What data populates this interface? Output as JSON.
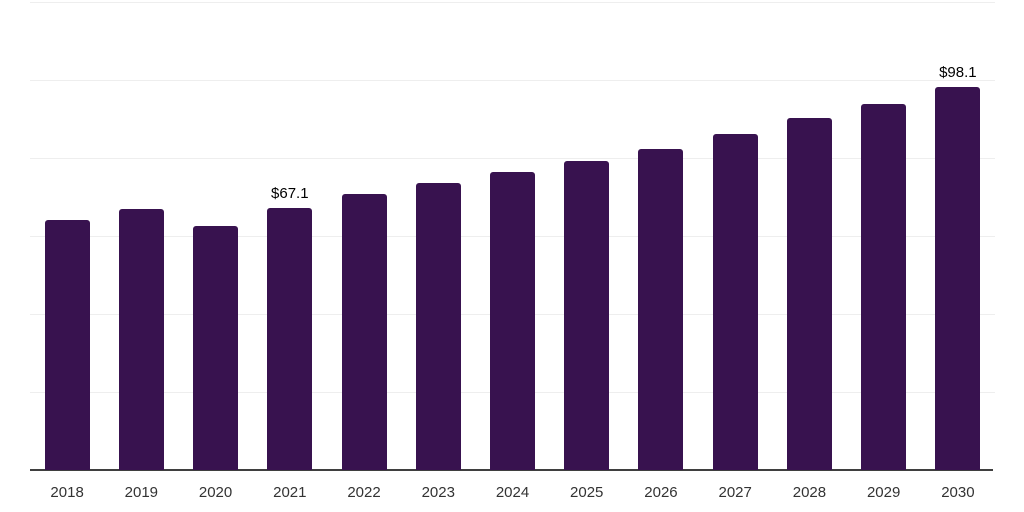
{
  "chart_data": {
    "type": "bar",
    "title": "",
    "xlabel": "",
    "ylabel": "",
    "categories": [
      "2018",
      "2019",
      "2020",
      "2021",
      "2022",
      "2023",
      "2024",
      "2025",
      "2026",
      "2027",
      "2028",
      "2029",
      "2030"
    ],
    "values": [
      64.1,
      66.8,
      62.6,
      67.1,
      70.8,
      73.5,
      76.3,
      79.3,
      82.3,
      86.2,
      90.2,
      93.8,
      98.1
    ],
    "point_labels": [
      "",
      "",
      "",
      "$67.1",
      "",
      "",
      "",
      "",
      "",
      "",
      "",
      "",
      "$98.1"
    ],
    "ylim": [
      0,
      120
    ],
    "grid_step": 20,
    "grid": "horizontal",
    "legend_position": "none",
    "y_axis_labels_visible": false,
    "colors": {
      "bar": "#38124F",
      "axis_line": "#3F3F3F",
      "gridline": "#EEEEEE",
      "tick_label": "#333333",
      "data_label": "#000000",
      "background": "#FFFFFF"
    }
  }
}
